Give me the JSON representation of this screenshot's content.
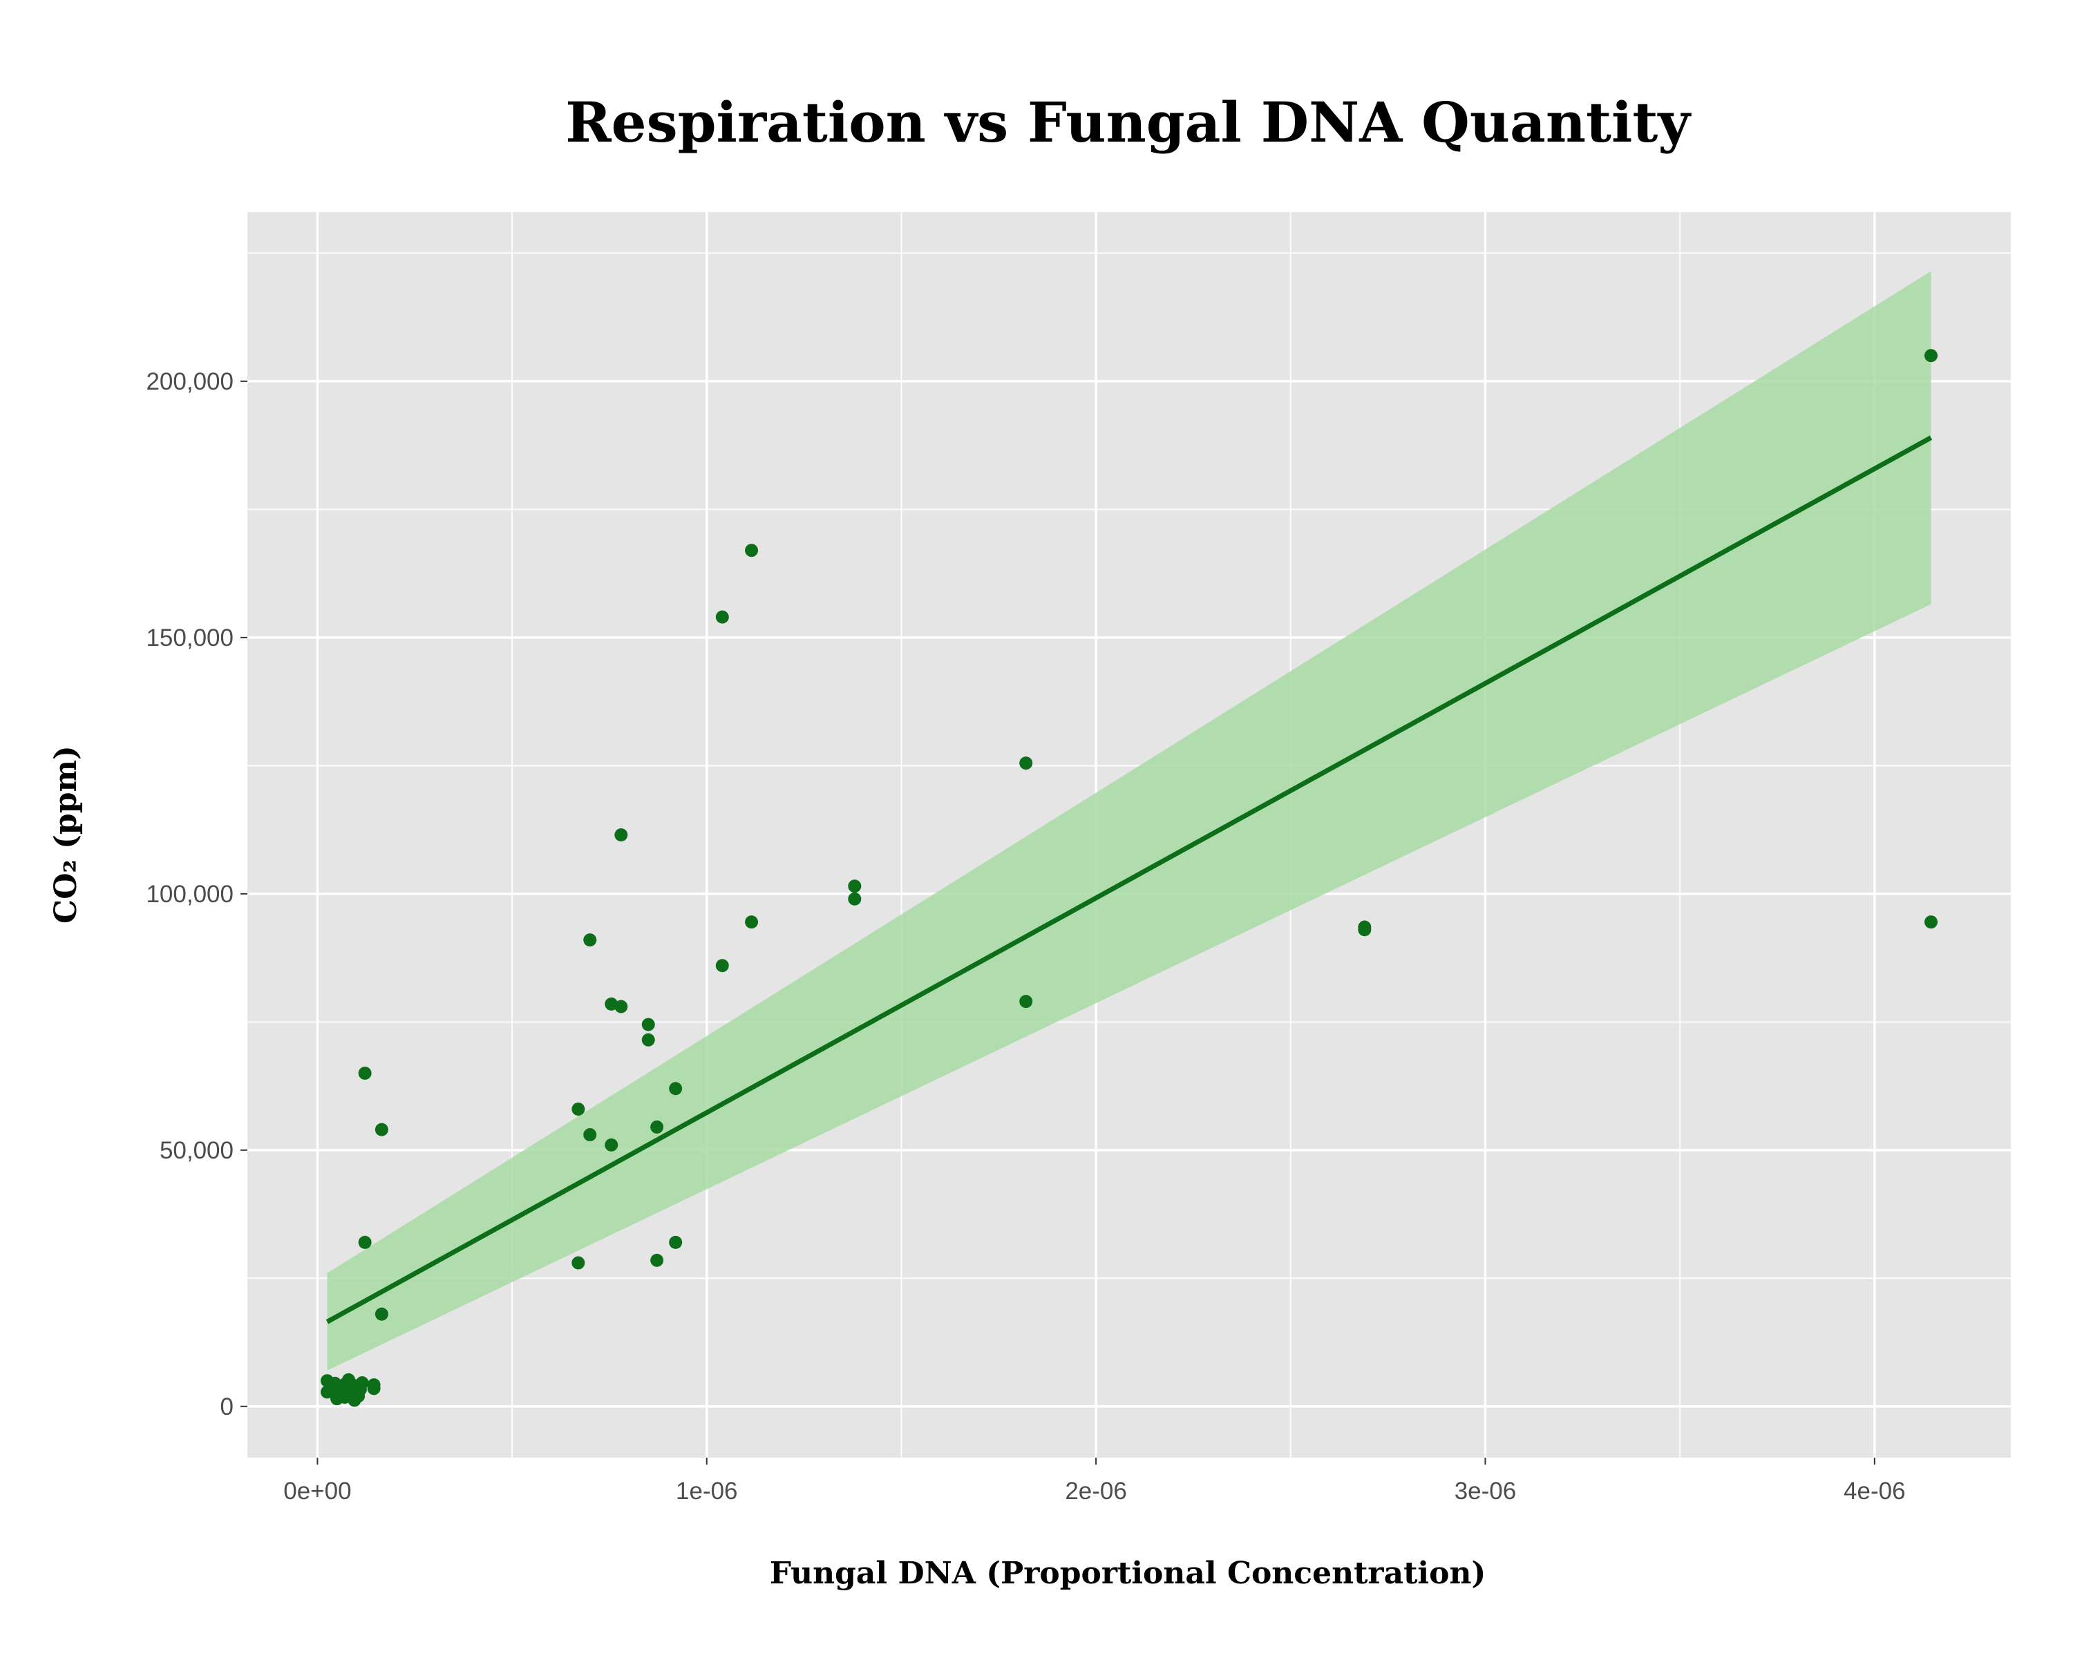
{
  "chart_data": {
    "type": "scatter",
    "title": "Respiration vs Fungal DNA Quantity",
    "xlabel": "Fungal DNA (Proportional Concentration)",
    "ylabel": "CO₂ (ppm)",
    "xlim": [
      -1.8e-07,
      4.35e-06
    ],
    "ylim": [
      -10000,
      233000
    ],
    "x_ticks": [
      0,
      1e-06,
      2e-06,
      3e-06,
      4e-06
    ],
    "x_tick_labels": [
      "0e+00",
      "1e-06",
      "2e-06",
      "3e-06",
      "4e-06"
    ],
    "y_ticks": [
      0,
      50000,
      100000,
      150000,
      200000
    ],
    "y_tick_labels": [
      "0",
      "50,000",
      "100,000",
      "150,000",
      "200,000"
    ],
    "grid": true,
    "legend": "none",
    "colors": {
      "panel": "#e5e5e5",
      "grid": "#ffffff",
      "point": "#0d6e1a",
      "line": "#0d6e1a",
      "ribbon": "#a8dca5"
    },
    "series": [
      {
        "type": "scatter",
        "points": [
          [
            2.5e-08,
            5000
          ],
          [
            2.5e-08,
            2800
          ],
          [
            3.5e-08,
            3200
          ],
          [
            4.5e-08,
            4500
          ],
          [
            5e-08,
            1500
          ],
          [
            5.5e-08,
            3500
          ],
          [
            6e-08,
            2200
          ],
          [
            6.5e-08,
            4000
          ],
          [
            7e-08,
            1800
          ],
          [
            7.5e-08,
            3000
          ],
          [
            8e-08,
            5200
          ],
          [
            8.5e-08,
            2500
          ],
          [
            9e-08,
            4200
          ],
          [
            9.5e-08,
            1200
          ],
          [
            1e-07,
            3800
          ],
          [
            1.05e-07,
            2000
          ],
          [
            1.1e-07,
            3300
          ],
          [
            1.15e-07,
            4600
          ],
          [
            5.5e-08,
            3000
          ],
          [
            7e-08,
            4300
          ],
          [
            9e-08,
            2700
          ],
          [
            1.45e-07,
            4200
          ],
          [
            1.45e-07,
            3500
          ],
          [
            1.22e-07,
            65000
          ],
          [
            1.22e-07,
            32000
          ],
          [
            1.65e-07,
            54000
          ],
          [
            1.65e-07,
            18000
          ],
          [
            6.7e-07,
            58000
          ],
          [
            6.7e-07,
            28000
          ],
          [
            7e-07,
            91000
          ],
          [
            7e-07,
            53000
          ],
          [
            7.55e-07,
            78500
          ],
          [
            7.55e-07,
            51000
          ],
          [
            7.8e-07,
            111500
          ],
          [
            7.8e-07,
            78000
          ],
          [
            8.5e-07,
            74500
          ],
          [
            8.5e-07,
            71500
          ],
          [
            8.72e-07,
            54500
          ],
          [
            8.72e-07,
            28500
          ],
          [
            9.2e-07,
            62000
          ],
          [
            9.2e-07,
            32000
          ],
          [
            1.04e-06,
            154000
          ],
          [
            1.04e-06,
            86000
          ],
          [
            1.115e-06,
            167000
          ],
          [
            1.115e-06,
            94500
          ],
          [
            1.38e-06,
            101500
          ],
          [
            1.38e-06,
            99000
          ],
          [
            1.82e-06,
            125500
          ],
          [
            1.82e-06,
            79000
          ],
          [
            2.69e-06,
            93500
          ],
          [
            2.69e-06,
            93000
          ],
          [
            4.145e-06,
            205000
          ],
          [
            4.145e-06,
            94500
          ]
        ]
      },
      {
        "type": "line",
        "name": "",
        "x": [
          2.5e-08,
          4.145e-06
        ],
        "y": [
          16500,
          189000
        ]
      },
      {
        "type": "area",
        "name": "",
        "x": [
          2.5e-08,
          4.145e-06
        ],
        "upper": [
          26000,
          221500
        ],
        "lower": [
          7000,
          156500
        ]
      }
    ]
  }
}
